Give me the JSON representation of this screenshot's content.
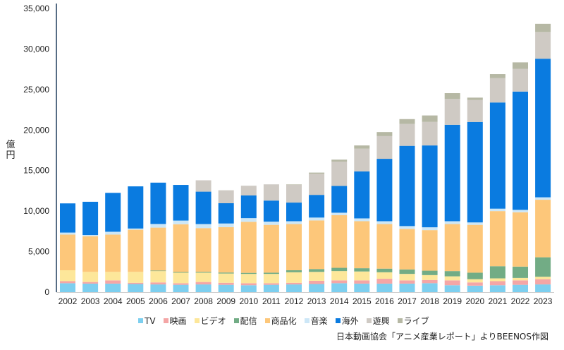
{
  "chart_data": {
    "type": "bar",
    "stacked": true,
    "title": "",
    "xlabel": "",
    "ylabel": "億円",
    "ylim": [
      0,
      35000
    ],
    "yticks": [
      0,
      5000,
      10000,
      15000,
      20000,
      25000,
      30000,
      35000
    ],
    "ytick_labels": [
      "0",
      "5,000",
      "10,000",
      "15,000",
      "20,000",
      "25,000",
      "30,000",
      "35,000"
    ],
    "grid": false,
    "legend_position": "bottom",
    "categories": [
      "2002",
      "2003",
      "2004",
      "2005",
      "2006",
      "2007",
      "2008",
      "2009",
      "2010",
      "2011",
      "2012",
      "2013",
      "2014",
      "2015",
      "2016",
      "2017",
      "2018",
      "2019",
      "2020",
      "2021",
      "2022",
      "2023"
    ],
    "series": [
      {
        "name": "TV",
        "color": "#7dcfef",
        "values": [
          1100,
          1050,
          1050,
          1000,
          950,
          900,
          950,
          900,
          850,
          900,
          950,
          1000,
          1100,
          1050,
          1050,
          1050,
          1100,
          850,
          800,
          850,
          900,
          950
        ]
      },
      {
        "name": "映画",
        "color": "#f4a6a6",
        "values": [
          250,
          200,
          400,
          150,
          250,
          200,
          300,
          250,
          250,
          200,
          200,
          400,
          350,
          400,
          600,
          400,
          400,
          600,
          400,
          500,
          550,
          650
        ]
      },
      {
        "name": "ビデオ",
        "color": "#fde79a",
        "values": [
          1350,
          1250,
          1050,
          1350,
          1400,
          1300,
          1150,
          1150,
          1150,
          1150,
          1300,
          1100,
          1150,
          1100,
          800,
          800,
          600,
          500,
          400,
          350,
          300,
          300
        ]
      },
      {
        "name": "配信",
        "color": "#72ac85",
        "values": [
          0,
          0,
          0,
          0,
          60,
          80,
          100,
          120,
          130,
          150,
          250,
          350,
          400,
          400,
          450,
          550,
          550,
          650,
          800,
          1500,
          1400,
          2400
        ]
      },
      {
        "name": "商品化",
        "color": "#fdc77a",
        "values": [
          4400,
          4400,
          4600,
          5200,
          5300,
          5900,
          5400,
          5600,
          6300,
          5900,
          5700,
          6000,
          6500,
          5800,
          5500,
          5000,
          5000,
          5800,
          5900,
          6800,
          6700,
          7100
        ]
      },
      {
        "name": "音楽",
        "color": "#cde7f7",
        "values": [
          250,
          150,
          350,
          150,
          450,
          450,
          500,
          450,
          450,
          400,
          350,
          350,
          300,
          350,
          350,
          350,
          350,
          350,
          300,
          300,
          300,
          300
        ]
      },
      {
        "name": "海外",
        "color": "#0a7be0",
        "values": [
          3600,
          4100,
          4800,
          5200,
          5100,
          4400,
          4000,
          2500,
          2800,
          2600,
          2300,
          2800,
          3300,
          5800,
          7700,
          9900,
          10100,
          11900,
          12400,
          13100,
          14600,
          17100
        ]
      },
      {
        "name": "遊興",
        "color": "#cfcac4",
        "values": [
          0,
          0,
          0,
          0,
          0,
          0,
          1400,
          1600,
          1200,
          2000,
          2200,
          2600,
          3000,
          2800,
          2800,
          2700,
          2900,
          3200,
          2700,
          3000,
          2800,
          3300
        ]
      },
      {
        "name": "ライブ",
        "color": "#b6b8a4",
        "values": [
          0,
          0,
          0,
          0,
          0,
          0,
          0,
          0,
          0,
          0,
          50,
          150,
          250,
          400,
          500,
          600,
          800,
          700,
          300,
          500,
          800,
          1000
        ]
      }
    ]
  },
  "axis": {
    "y_unit_label": "億円"
  },
  "source": "日本動画協会「アニメ産業レポート」よりBEENOS作図"
}
